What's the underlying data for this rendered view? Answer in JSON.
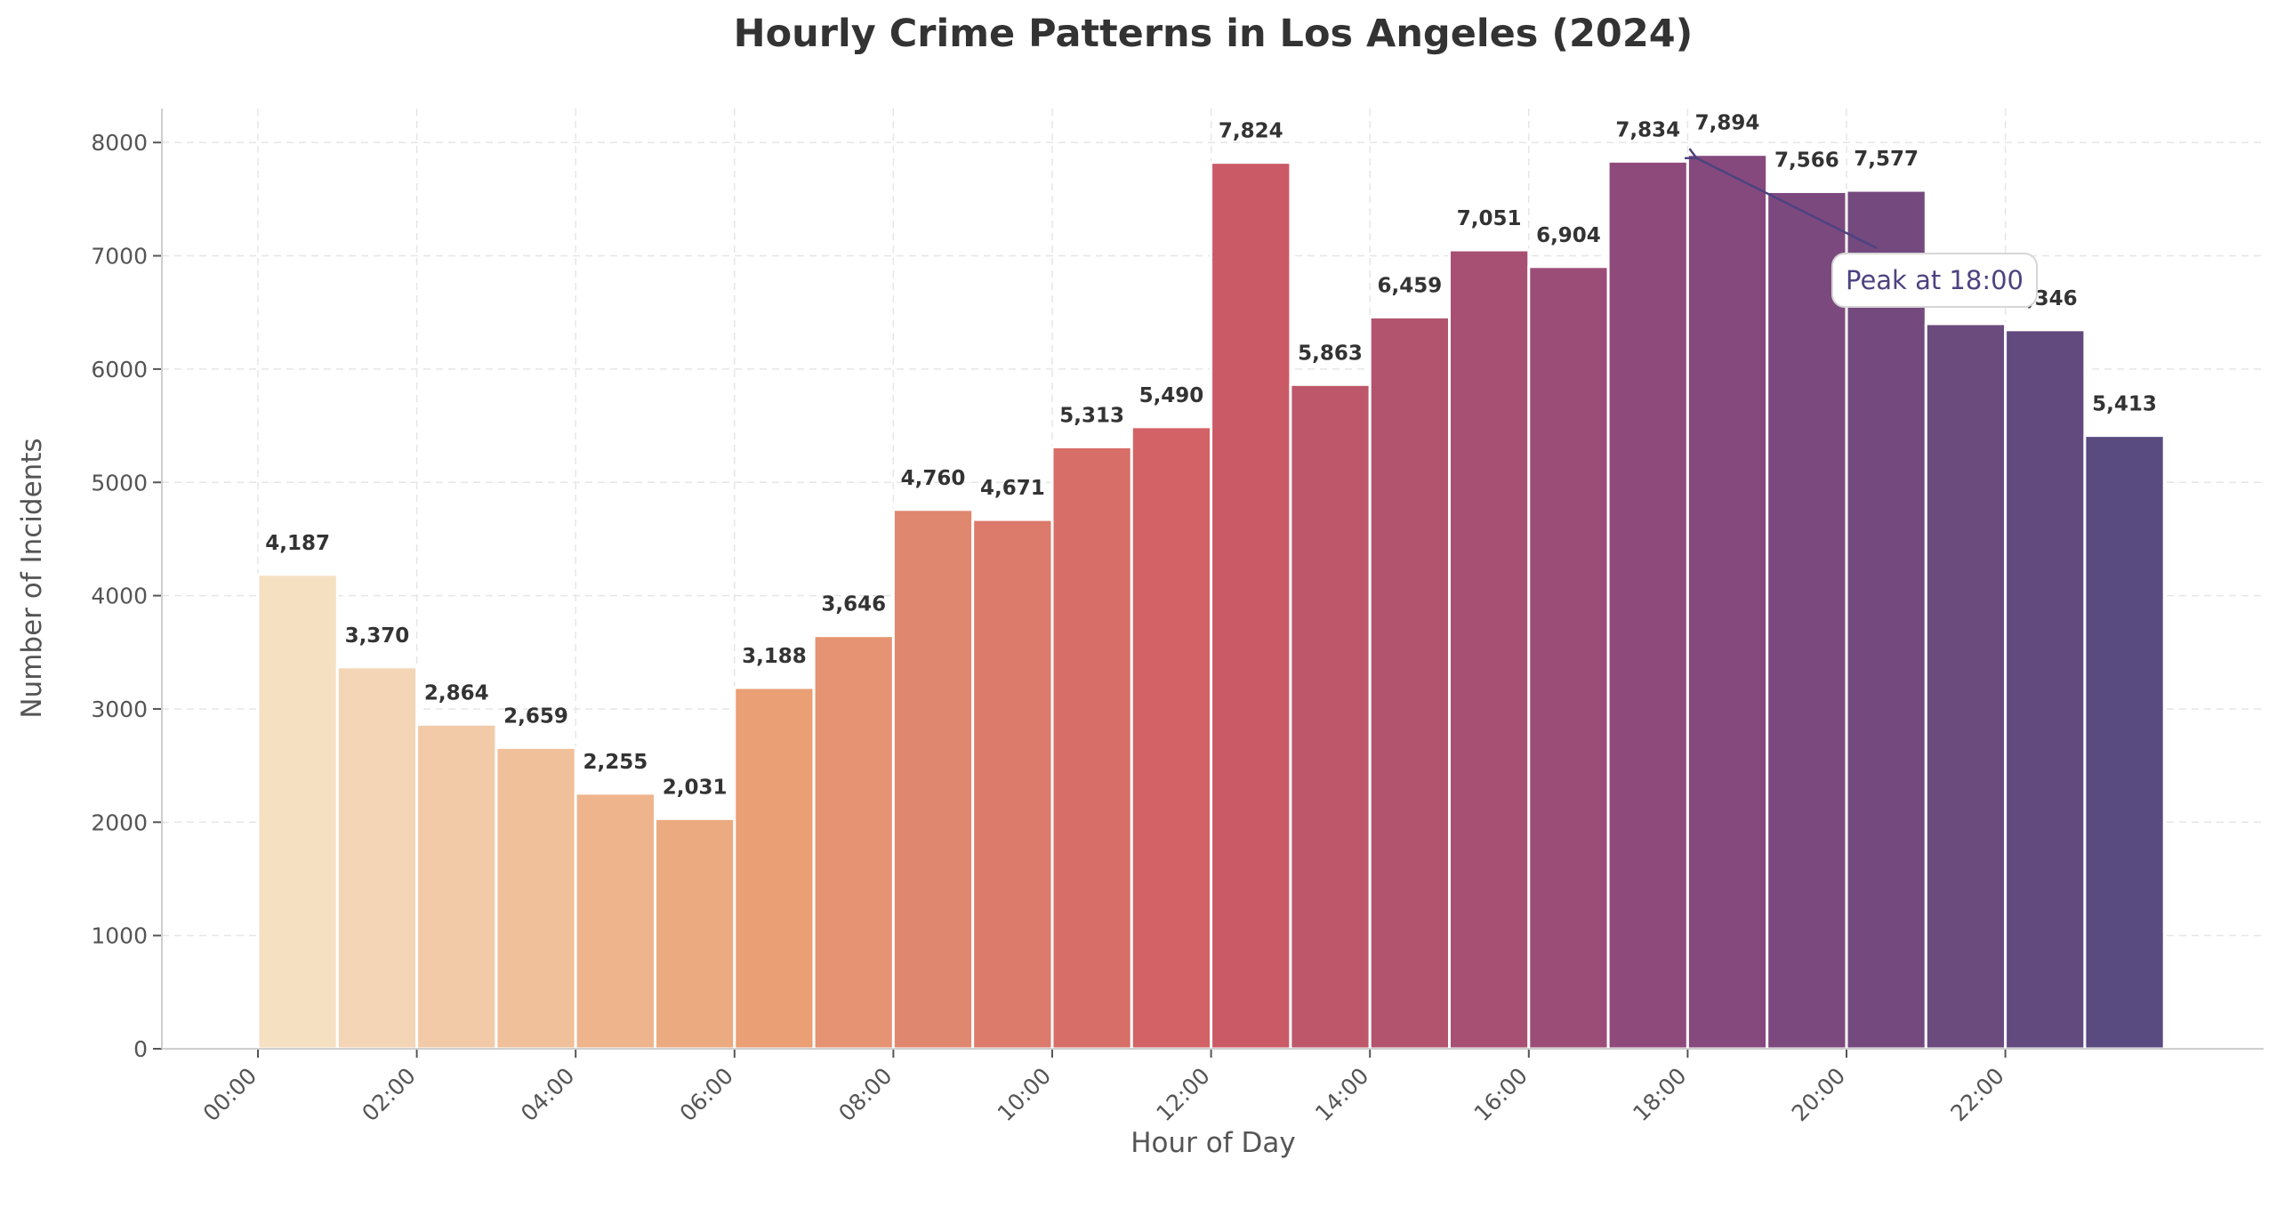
{
  "chart_data": {
    "type": "bar",
    "title": "Hourly Crime Patterns in Los Angeles (2024)",
    "xlabel": "Hour of Day",
    "ylabel": "Number of Incidents",
    "categories": [
      "00:00",
      "01:00",
      "02:00",
      "03:00",
      "04:00",
      "05:00",
      "06:00",
      "07:00",
      "08:00",
      "09:00",
      "10:00",
      "11:00",
      "12:00",
      "13:00",
      "14:00",
      "15:00",
      "16:00",
      "17:00",
      "18:00",
      "19:00",
      "20:00",
      "21:00",
      "22:00",
      "23:00"
    ],
    "values": [
      4187,
      3370,
      2864,
      2659,
      2255,
      2031,
      3188,
      3646,
      4760,
      4671,
      5313,
      5490,
      7824,
      5863,
      6459,
      7051,
      6904,
      7834,
      7894,
      7566,
      7577,
      6400,
      6346,
      5413
    ],
    "value_labels": [
      "4,187",
      "3,370",
      "2,864",
      "2,659",
      "2,255",
      "2,031",
      "3,188",
      "3,646",
      "4,760",
      "4,671",
      "5,313",
      "5,490",
      "7,824",
      "5,863",
      "6,459",
      "7,051",
      "6,904",
      "7,834",
      "7,894",
      "7,566",
      "7,577",
      "",
      "6,346",
      "5,413"
    ],
    "x_tick_labels": [
      "00:00",
      "02:00",
      "04:00",
      "06:00",
      "08:00",
      "10:00",
      "12:00",
      "14:00",
      "16:00",
      "18:00",
      "20:00",
      "22:00"
    ],
    "y_ticks": [
      0,
      1000,
      2000,
      3000,
      4000,
      5000,
      6000,
      7000,
      8000
    ],
    "ylim": [
      0,
      8300
    ],
    "grid": true,
    "annotation": {
      "text": "Peak at 18:00",
      "target_index": 18
    },
    "colors": {
      "start": "#f6e0c2",
      "mid1": "#eba276",
      "mid2": "#d05c63",
      "mid3": "#8c497d",
      "end": "#594a7f",
      "annotation": "#4e4280"
    }
  }
}
